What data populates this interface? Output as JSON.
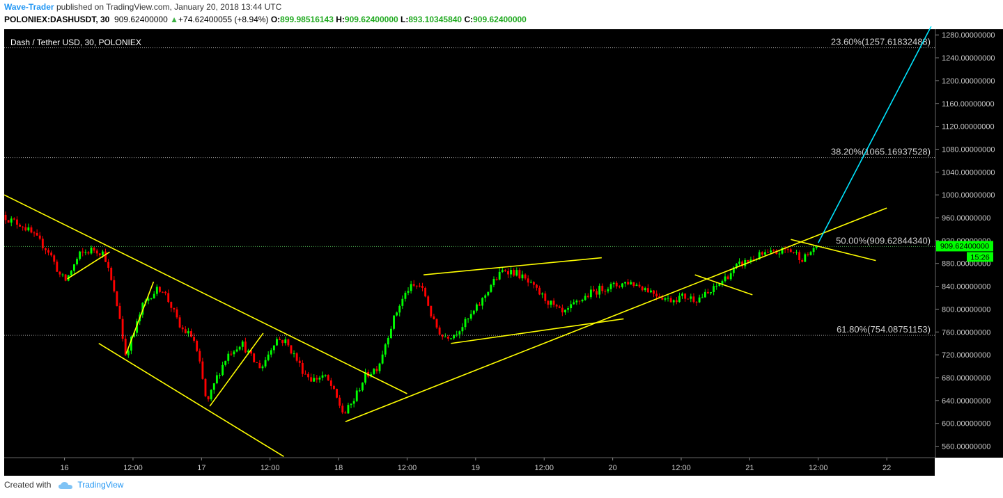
{
  "header": {
    "author": "Wave-Trader",
    "published_text": "published on TradingView.com, January 20, 2018 13:44 UTC",
    "symbol": "POLONIEX:DASHUSDT, 30",
    "last": "909.62400000",
    "change": "+74.62400055 (+8.94%)",
    "o_label": "O:",
    "o": "899.98516143",
    "h_label": "H:",
    "h": "909.62400000",
    "l_label": "L:",
    "l": "893.10345840",
    "c_label": "C:",
    "c": "909.62400000"
  },
  "footer": {
    "created_with": "Created with",
    "brand": "TradingView"
  },
  "colors": {
    "background": "#000000",
    "up": "#00ff00",
    "down": "#ff0000",
    "trendline": "#ffff00",
    "projection": "#00e5ff",
    "price_tag": "#00ff00"
  },
  "chart_data": {
    "type": "candlestick",
    "title": "Dash / Tether USD, 30, POLONIEX",
    "ylim": [
      540,
      1290
    ],
    "y_ticks": [
      "1280.00000000",
      "1240.00000000",
      "1200.00000000",
      "1160.00000000",
      "1120.00000000",
      "1080.00000000",
      "1040.00000000",
      "1000.00000000",
      "960.00000000",
      "920.00000000",
      "880.00000000",
      "840.00000000",
      "800.00000000",
      "760.00000000",
      "720.00000000",
      "680.00000000",
      "640.00000000",
      "600.00000000",
      "560.00000000"
    ],
    "y_tick_values": [
      1280,
      1240,
      1200,
      1160,
      1120,
      1080,
      1040,
      1000,
      960,
      920,
      880,
      840,
      800,
      760,
      720,
      680,
      640,
      600,
      560
    ],
    "x_ticks": [
      "16",
      "12:00",
      "17",
      "12:00",
      "18",
      "12:00",
      "19",
      "12:00",
      "20",
      "12:00",
      "21",
      "12:00",
      "22"
    ],
    "x_tick_days": [
      1,
      1.5,
      2,
      2.5,
      3,
      3.5,
      4,
      4.5,
      5,
      5.5,
      6,
      6.5,
      7
    ],
    "xlim_days": [
      0.56,
      7.35
    ],
    "current_price": "909.62400000",
    "countdown": "15:26",
    "fib_levels": [
      {
        "label": "23.60%(1257.61832488)",
        "value": 1257.618
      },
      {
        "label": "38.20%(1065.16937528)",
        "value": 1065.169
      },
      {
        "label": "50.00%(909.62844340)",
        "value": 909.628
      },
      {
        "label": "61.80%(754.08751153)",
        "value": 754.088
      }
    ],
    "anchors": [
      [
        0.56,
        965
      ],
      [
        0.62,
        955
      ],
      [
        0.7,
        948
      ],
      [
        0.8,
        925
      ],
      [
        0.9,
        900
      ],
      [
        0.98,
        858
      ],
      [
        1.02,
        850
      ],
      [
        1.12,
        895
      ],
      [
        1.22,
        905
      ],
      [
        1.3,
        898
      ],
      [
        1.35,
        850
      ],
      [
        1.42,
        780
      ],
      [
        1.45,
        718
      ],
      [
        1.52,
        760
      ],
      [
        1.58,
        805
      ],
      [
        1.65,
        828
      ],
      [
        1.72,
        838
      ],
      [
        1.8,
        800
      ],
      [
        1.85,
        768
      ],
      [
        1.95,
        750
      ],
      [
        2.0,
        700
      ],
      [
        2.05,
        632
      ],
      [
        2.12,
        680
      ],
      [
        2.2,
        720
      ],
      [
        2.3,
        742
      ],
      [
        2.4,
        706
      ],
      [
        2.45,
        698
      ],
      [
        2.55,
        748
      ],
      [
        2.62,
        744
      ],
      [
        2.68,
        722
      ],
      [
        2.75,
        692
      ],
      [
        2.82,
        676
      ],
      [
        2.9,
        684
      ],
      [
        2.95,
        668
      ],
      [
        3.05,
        615
      ],
      [
        3.12,
        640
      ],
      [
        3.2,
        682
      ],
      [
        3.3,
        700
      ],
      [
        3.38,
        762
      ],
      [
        3.45,
        805
      ],
      [
        3.52,
        836
      ],
      [
        3.6,
        842
      ],
      [
        3.65,
        820
      ],
      [
        3.7,
        778
      ],
      [
        3.77,
        752
      ],
      [
        3.85,
        756
      ],
      [
        3.95,
        780
      ],
      [
        4.05,
        812
      ],
      [
        4.12,
        842
      ],
      [
        4.22,
        870
      ],
      [
        4.32,
        862
      ],
      [
        4.42,
        840
      ],
      [
        4.5,
        822
      ],
      [
        4.6,
        800
      ],
      [
        4.65,
        790
      ],
      [
        4.75,
        812
      ],
      [
        4.85,
        828
      ],
      [
        4.95,
        838
      ],
      [
        5.05,
        842
      ],
      [
        5.12,
        848
      ],
      [
        5.22,
        840
      ],
      [
        5.32,
        828
      ],
      [
        5.42,
        816
      ],
      [
        5.52,
        822
      ],
      [
        5.62,
        818
      ],
      [
        5.72,
        828
      ],
      [
        5.82,
        852
      ],
      [
        5.92,
        875
      ],
      [
        6.0,
        885
      ],
      [
        6.1,
        895
      ],
      [
        6.2,
        898
      ],
      [
        6.28,
        905
      ],
      [
        6.33,
        900
      ],
      [
        6.4,
        888
      ],
      [
        6.45,
        898
      ],
      [
        6.48,
        909.6
      ]
    ],
    "trendlines": [
      {
        "color": "yellow",
        "points": [
          [
            0.56,
            1000
          ],
          [
            3.5,
            652
          ]
        ]
      },
      {
        "color": "yellow",
        "points": [
          [
            1.25,
            740
          ],
          [
            2.6,
            542
          ]
        ]
      },
      {
        "color": "yellow",
        "points": [
          [
            1.02,
            853
          ],
          [
            1.33,
            900
          ]
        ]
      },
      {
        "color": "yellow",
        "points": [
          [
            1.45,
            722
          ],
          [
            1.65,
            848
          ]
        ]
      },
      {
        "color": "yellow",
        "points": [
          [
            2.06,
            630
          ],
          [
            2.45,
            758
          ]
        ]
      },
      {
        "color": "yellow",
        "points": [
          [
            3.05,
            603
          ],
          [
            7.0,
            977
          ]
        ]
      },
      {
        "color": "yellow",
        "points": [
          [
            3.62,
            860
          ],
          [
            4.92,
            890
          ]
        ]
      },
      {
        "color": "yellow",
        "points": [
          [
            3.82,
            740
          ],
          [
            5.08,
            783
          ]
        ]
      },
      {
        "color": "yellow",
        "points": [
          [
            5.6,
            860
          ],
          [
            6.02,
            825
          ]
        ]
      },
      {
        "color": "yellow",
        "points": [
          [
            6.3,
            922
          ],
          [
            6.92,
            885
          ]
        ]
      },
      {
        "color": "cyan",
        "points": [
          [
            6.5,
            916
          ],
          [
            7.4,
            1330
          ]
        ]
      }
    ]
  }
}
